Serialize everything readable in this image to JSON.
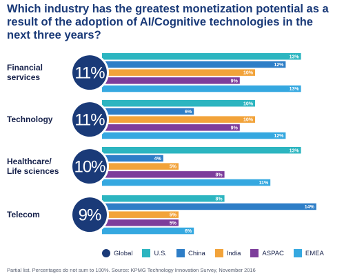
{
  "title": "Which industry has the greatest monetization potential as a result of the adoption of AI/Cognitive technologies in the next three years?",
  "footnote": "Partial list. Percentages do not sum to 100%. Source: KPMG Technology Innovation Survey, November 2016",
  "colors": {
    "Global": "#1a3a78",
    "U.S.": "#2cb5c0",
    "China": "#2e7ec7",
    "India": "#f2a33a",
    "ASPAC": "#7d3d9b",
    "EMEA": "#35a8e0"
  },
  "chart_data": {
    "type": "bar",
    "orientation": "horizontal",
    "title": "Which industry has the greatest monetization potential as a result of the adoption of AI/Cognitive technologies in the next three years?",
    "xlim": [
      0,
      14
    ],
    "categories": [
      "Financial services",
      "Technology",
      "Healthcare/ Life sciences",
      "Telecom"
    ],
    "global_values": [
      11,
      11,
      10,
      9
    ],
    "global_labels": [
      "11%",
      "11%",
      "10%",
      "9%"
    ],
    "legend_position": "bottom",
    "series": [
      {
        "name": "U.S.",
        "values": [
          13,
          10,
          13,
          8
        ],
        "labels": [
          "13%",
          "10%",
          "13%",
          "8%"
        ]
      },
      {
        "name": "China",
        "values": [
          12,
          6,
          4,
          14
        ],
        "labels": [
          "12%",
          "6%",
          "4%",
          "14%"
        ]
      },
      {
        "name": "India",
        "values": [
          10,
          10,
          5,
          5
        ],
        "labels": [
          "10%",
          "10%",
          "5%",
          "5%"
        ]
      },
      {
        "name": "ASPAC",
        "values": [
          9,
          9,
          8,
          5
        ],
        "labels": [
          "9%",
          "9%",
          "8%",
          "5%"
        ]
      },
      {
        "name": "EMEA",
        "values": [
          13,
          12,
          11,
          6
        ],
        "labels": [
          "13%",
          "12%",
          "11%",
          "6%"
        ]
      }
    ],
    "legend": [
      "Global",
      "U.S.",
      "China",
      "India",
      "ASPAC",
      "EMEA"
    ]
  }
}
